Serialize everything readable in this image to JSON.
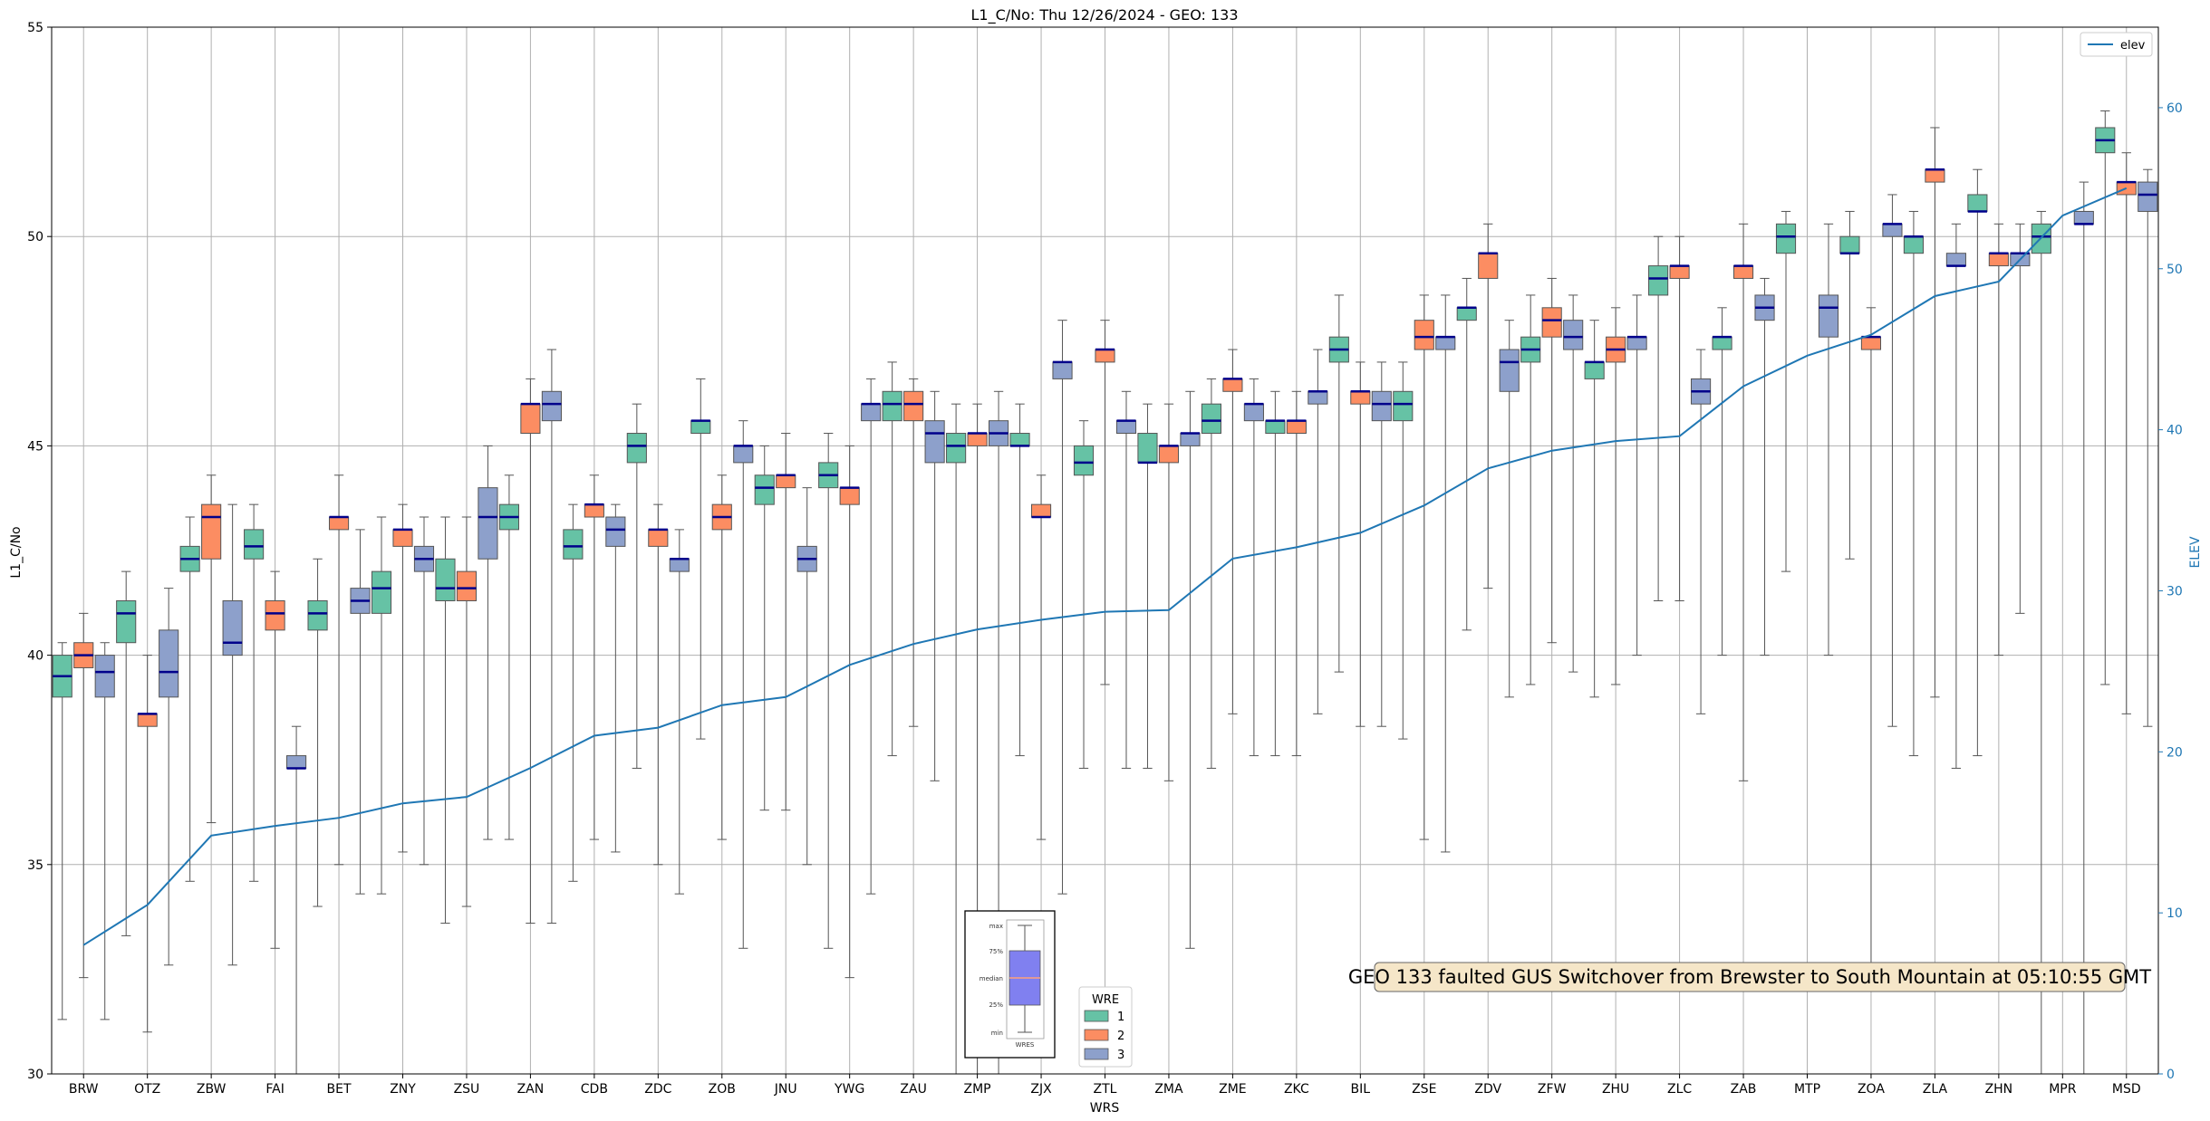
{
  "chart_data": {
    "type": "box",
    "title": "L1_C/No: Thu 12/26/2024 - GEO: 133",
    "xlabel": "WRS",
    "ylabel": "L1_C/No",
    "y2label": "ELEV",
    "ylim": [
      30,
      55
    ],
    "yticks": [
      30,
      35,
      40,
      45,
      50,
      55
    ],
    "y2lim": [
      0,
      65
    ],
    "y2ticks": [
      0,
      10,
      20,
      30,
      40,
      50,
      60
    ],
    "grid": true,
    "categories": [
      "BRW",
      "OTZ",
      "ZBW",
      "FAI",
      "BET",
      "ZNY",
      "ZSU",
      "ZAN",
      "CDB",
      "ZDC",
      "ZOB",
      "JNU",
      "YWG",
      "ZAU",
      "ZMP",
      "ZJX",
      "ZTL",
      "ZMA",
      "ZME",
      "ZKC",
      "BIL",
      "ZSE",
      "ZDV",
      "ZFW",
      "ZHU",
      "ZLC",
      "ZAB",
      "MTP",
      "ZOA",
      "ZLA",
      "ZHN",
      "MPR",
      "MSD"
    ],
    "wre_colors": {
      "1": "#66c2a5",
      "2": "#fc8d62",
      "3": "#8da0cb"
    },
    "median_color": "#00008b",
    "elev_color": "#1f77b4",
    "boxes": [
      {
        "wrs": "BRW",
        "wre": "1",
        "min": 31.3,
        "q1": 39.0,
        "median": 39.5,
        "q3": 40.0,
        "max": 40.3
      },
      {
        "wrs": "BRW",
        "wre": "2",
        "min": 32.3,
        "q1": 39.7,
        "median": 40.0,
        "q3": 40.3,
        "max": 41.0
      },
      {
        "wrs": "BRW",
        "wre": "3",
        "min": 31.3,
        "q1": 39.0,
        "median": 39.6,
        "q3": 40.0,
        "max": 40.3
      },
      {
        "wrs": "OTZ",
        "wre": "1",
        "min": 33.3,
        "q1": 40.3,
        "median": 41.0,
        "q3": 41.3,
        "max": 42.0
      },
      {
        "wrs": "OTZ",
        "wre": "2",
        "min": 31.0,
        "q1": 38.3,
        "median": 38.6,
        "q3": 38.6,
        "max": 40.0
      },
      {
        "wrs": "OTZ",
        "wre": "3",
        "min": 32.6,
        "q1": 39.0,
        "median": 39.6,
        "q3": 40.6,
        "max": 41.6
      },
      {
        "wrs": "ZBW",
        "wre": "1",
        "min": 34.6,
        "q1": 42.0,
        "median": 42.3,
        "q3": 42.6,
        "max": 43.3
      },
      {
        "wrs": "ZBW",
        "wre": "2",
        "min": 36.0,
        "q1": 42.3,
        "median": 43.3,
        "q3": 43.6,
        "max": 44.3
      },
      {
        "wrs": "ZBW",
        "wre": "3",
        "min": 32.6,
        "q1": 40.0,
        "median": 40.3,
        "q3": 41.3,
        "max": 43.6
      },
      {
        "wrs": "FAI",
        "wre": "1",
        "min": 34.6,
        "q1": 42.3,
        "median": 42.6,
        "q3": 43.0,
        "max": 43.6
      },
      {
        "wrs": "FAI",
        "wre": "2",
        "min": 33.0,
        "q1": 40.6,
        "median": 41.0,
        "q3": 41.3,
        "max": 42.0
      },
      {
        "wrs": "FAI",
        "wre": "3",
        "min": 30.0,
        "q1": 37.3,
        "median": 37.3,
        "q3": 37.6,
        "max": 38.3
      },
      {
        "wrs": "BET",
        "wre": "1",
        "min": 34.0,
        "q1": 40.6,
        "median": 41.0,
        "q3": 41.3,
        "max": 42.3
      },
      {
        "wrs": "BET",
        "wre": "2",
        "min": 35.0,
        "q1": 43.0,
        "median": 43.3,
        "q3": 43.3,
        "max": 44.3
      },
      {
        "wrs": "BET",
        "wre": "3",
        "min": 34.3,
        "q1": 41.0,
        "median": 41.3,
        "q3": 41.6,
        "max": 43.0
      },
      {
        "wrs": "ZNY",
        "wre": "1",
        "min": 34.3,
        "q1": 41.0,
        "median": 41.6,
        "q3": 42.0,
        "max": 43.3
      },
      {
        "wrs": "ZNY",
        "wre": "2",
        "min": 35.3,
        "q1": 42.6,
        "median": 43.0,
        "q3": 43.0,
        "max": 43.6
      },
      {
        "wrs": "ZNY",
        "wre": "3",
        "min": 35.0,
        "q1": 42.0,
        "median": 42.3,
        "q3": 42.6,
        "max": 43.3
      },
      {
        "wrs": "ZSU",
        "wre": "1",
        "min": 33.6,
        "q1": 41.3,
        "median": 41.6,
        "q3": 42.3,
        "max": 43.3
      },
      {
        "wrs": "ZSU",
        "wre": "2",
        "min": 34.0,
        "q1": 41.3,
        "median": 41.6,
        "q3": 42.0,
        "max": 43.3
      },
      {
        "wrs": "ZSU",
        "wre": "3",
        "min": 35.6,
        "q1": 42.3,
        "median": 43.3,
        "q3": 44.0,
        "max": 45.0
      },
      {
        "wrs": "ZAN",
        "wre": "1",
        "min": 35.6,
        "q1": 43.0,
        "median": 43.3,
        "q3": 43.6,
        "max": 44.3
      },
      {
        "wrs": "ZAN",
        "wre": "2",
        "min": 33.6,
        "q1": 45.3,
        "median": 46.0,
        "q3": 46.0,
        "max": 46.6
      },
      {
        "wrs": "ZAN",
        "wre": "3",
        "min": 33.6,
        "q1": 45.6,
        "median": 46.0,
        "q3": 46.3,
        "max": 47.3
      },
      {
        "wrs": "CDB",
        "wre": "1",
        "min": 34.6,
        "q1": 42.3,
        "median": 42.6,
        "q3": 43.0,
        "max": 43.6
      },
      {
        "wrs": "CDB",
        "wre": "2",
        "min": 35.6,
        "q1": 43.3,
        "median": 43.6,
        "q3": 43.6,
        "max": 44.3
      },
      {
        "wrs": "CDB",
        "wre": "3",
        "min": 35.3,
        "q1": 42.6,
        "median": 43.0,
        "q3": 43.3,
        "max": 43.6
      },
      {
        "wrs": "ZDC",
        "wre": "1",
        "min": 37.3,
        "q1": 44.6,
        "median": 45.0,
        "q3": 45.3,
        "max": 46.0
      },
      {
        "wrs": "ZDC",
        "wre": "2",
        "min": 35.0,
        "q1": 42.6,
        "median": 43.0,
        "q3": 43.0,
        "max": 43.6
      },
      {
        "wrs": "ZDC",
        "wre": "3",
        "min": 34.3,
        "q1": 42.0,
        "median": 42.3,
        "q3": 42.3,
        "max": 43.0
      },
      {
        "wrs": "ZOB",
        "wre": "1",
        "min": 38.0,
        "q1": 45.3,
        "median": 45.6,
        "q3": 45.6,
        "max": 46.6
      },
      {
        "wrs": "ZOB",
        "wre": "2",
        "min": 35.6,
        "q1": 43.0,
        "median": 43.3,
        "q3": 43.6,
        "max": 44.3
      },
      {
        "wrs": "ZOB",
        "wre": "3",
        "min": 33.0,
        "q1": 44.6,
        "median": 45.0,
        "q3": 45.0,
        "max": 45.6
      },
      {
        "wrs": "JNU",
        "wre": "1",
        "min": 36.3,
        "q1": 43.6,
        "median": 44.0,
        "q3": 44.3,
        "max": 45.0
      },
      {
        "wrs": "JNU",
        "wre": "2",
        "min": 36.3,
        "q1": 44.0,
        "median": 44.3,
        "q3": 44.3,
        "max": 45.3
      },
      {
        "wrs": "JNU",
        "wre": "3",
        "min": 35.0,
        "q1": 42.0,
        "median": 42.3,
        "q3": 42.6,
        "max": 44.0
      },
      {
        "wrs": "YWG",
        "wre": "1",
        "min": 33.0,
        "q1": 44.0,
        "median": 44.3,
        "q3": 44.6,
        "max": 45.3
      },
      {
        "wrs": "YWG",
        "wre": "2",
        "min": 32.3,
        "q1": 43.6,
        "median": 44.0,
        "q3": 44.0,
        "max": 45.0
      },
      {
        "wrs": "YWG",
        "wre": "3",
        "min": 34.3,
        "q1": 45.6,
        "median": 46.0,
        "q3": 46.0,
        "max": 46.6
      },
      {
        "wrs": "ZAU",
        "wre": "1",
        "min": 37.6,
        "q1": 45.6,
        "median": 46.0,
        "q3": 46.3,
        "max": 47.0
      },
      {
        "wrs": "ZAU",
        "wre": "2",
        "min": 38.3,
        "q1": 45.6,
        "median": 46.0,
        "q3": 46.3,
        "max": 46.6
      },
      {
        "wrs": "ZAU",
        "wre": "3",
        "min": 37.0,
        "q1": 44.6,
        "median": 45.3,
        "q3": 45.6,
        "max": 46.3
      },
      {
        "wrs": "ZMP",
        "wre": "1",
        "min": 30.0,
        "q1": 44.6,
        "median": 45.0,
        "q3": 45.3,
        "max": 46.0
      },
      {
        "wrs": "ZMP",
        "wre": "2",
        "min": 30.0,
        "q1": 45.0,
        "median": 45.3,
        "q3": 45.3,
        "max": 46.0
      },
      {
        "wrs": "ZMP",
        "wre": "3",
        "min": 30.0,
        "q1": 45.0,
        "median": 45.3,
        "q3": 45.6,
        "max": 46.3
      },
      {
        "wrs": "ZJX",
        "wre": "1",
        "min": 37.6,
        "q1": 45.0,
        "median": 45.0,
        "q3": 45.3,
        "max": 46.0
      },
      {
        "wrs": "ZJX",
        "wre": "2",
        "min": 35.6,
        "q1": 43.3,
        "median": 43.3,
        "q3": 43.6,
        "max": 44.3
      },
      {
        "wrs": "ZJX",
        "wre": "3",
        "min": 34.3,
        "q1": 46.6,
        "median": 47.0,
        "q3": 47.0,
        "max": 48.0
      },
      {
        "wrs": "ZTL",
        "wre": "1",
        "min": 37.3,
        "q1": 44.3,
        "median": 44.6,
        "q3": 45.0,
        "max": 45.6
      },
      {
        "wrs": "ZTL",
        "wre": "2",
        "min": 39.3,
        "q1": 47.0,
        "median": 47.3,
        "q3": 47.3,
        "max": 48.0
      },
      {
        "wrs": "ZTL",
        "wre": "3",
        "min": 37.3,
        "q1": 45.3,
        "median": 45.6,
        "q3": 45.6,
        "max": 46.3
      },
      {
        "wrs": "ZMA",
        "wre": "1",
        "min": 37.3,
        "q1": 44.6,
        "median": 44.6,
        "q3": 45.3,
        "max": 46.0
      },
      {
        "wrs": "ZMA",
        "wre": "2",
        "min": 37.0,
        "q1": 44.6,
        "median": 45.0,
        "q3": 45.0,
        "max": 46.0
      },
      {
        "wrs": "ZMA",
        "wre": "3",
        "min": 33.0,
        "q1": 45.0,
        "median": 45.3,
        "q3": 45.3,
        "max": 46.3
      },
      {
        "wrs": "ZME",
        "wre": "1",
        "min": 37.3,
        "q1": 45.3,
        "median": 45.6,
        "q3": 46.0,
        "max": 46.6
      },
      {
        "wrs": "ZME",
        "wre": "2",
        "min": 38.6,
        "q1": 46.3,
        "median": 46.6,
        "q3": 46.6,
        "max": 47.3
      },
      {
        "wrs": "ZME",
        "wre": "3",
        "min": 37.6,
        "q1": 45.6,
        "median": 46.0,
        "q3": 46.0,
        "max": 46.6
      },
      {
        "wrs": "ZKC",
        "wre": "1",
        "min": 37.6,
        "q1": 45.3,
        "median": 45.6,
        "q3": 45.6,
        "max": 46.3
      },
      {
        "wrs": "ZKC",
        "wre": "2",
        "min": 37.6,
        "q1": 45.3,
        "median": 45.6,
        "q3": 45.6,
        "max": 46.3
      },
      {
        "wrs": "ZKC",
        "wre": "3",
        "min": 38.6,
        "q1": 46.0,
        "median": 46.3,
        "q3": 46.3,
        "max": 47.3
      },
      {
        "wrs": "BIL",
        "wre": "1",
        "min": 39.6,
        "q1": 47.0,
        "median": 47.3,
        "q3": 47.6,
        "max": 48.6
      },
      {
        "wrs": "BIL",
        "wre": "2",
        "min": 38.3,
        "q1": 46.0,
        "median": 46.3,
        "q3": 46.3,
        "max": 47.0
      },
      {
        "wrs": "BIL",
        "wre": "3",
        "min": 38.3,
        "q1": 45.6,
        "median": 46.0,
        "q3": 46.3,
        "max": 47.0
      },
      {
        "wrs": "ZSE",
        "wre": "1",
        "min": 38.0,
        "q1": 45.6,
        "median": 46.0,
        "q3": 46.3,
        "max": 47.0
      },
      {
        "wrs": "ZSE",
        "wre": "2",
        "min": 35.6,
        "q1": 47.3,
        "median": 47.6,
        "q3": 48.0,
        "max": 48.6
      },
      {
        "wrs": "ZSE",
        "wre": "3",
        "min": 35.3,
        "q1": 47.3,
        "median": 47.6,
        "q3": 47.6,
        "max": 48.6
      },
      {
        "wrs": "ZDV",
        "wre": "1",
        "min": 40.6,
        "q1": 48.0,
        "median": 48.3,
        "q3": 48.3,
        "max": 49.0
      },
      {
        "wrs": "ZDV",
        "wre": "2",
        "min": 41.6,
        "q1": 49.0,
        "median": 49.6,
        "q3": 49.6,
        "max": 50.3
      },
      {
        "wrs": "ZDV",
        "wre": "3",
        "min": 39.0,
        "q1": 46.3,
        "median": 47.0,
        "q3": 47.3,
        "max": 48.0
      },
      {
        "wrs": "ZFW",
        "wre": "1",
        "min": 39.3,
        "q1": 47.0,
        "median": 47.3,
        "q3": 47.6,
        "max": 48.6
      },
      {
        "wrs": "ZFW",
        "wre": "2",
        "min": 40.3,
        "q1": 47.6,
        "median": 48.0,
        "q3": 48.3,
        "max": 49.0
      },
      {
        "wrs": "ZFW",
        "wre": "3",
        "min": 39.6,
        "q1": 47.3,
        "median": 47.6,
        "q3": 48.0,
        "max": 48.6
      },
      {
        "wrs": "ZHU",
        "wre": "1",
        "min": 39.0,
        "q1": 46.6,
        "median": 47.0,
        "q3": 47.0,
        "max": 48.0
      },
      {
        "wrs": "ZHU",
        "wre": "2",
        "min": 39.3,
        "q1": 47.0,
        "median": 47.3,
        "q3": 47.6,
        "max": 48.3
      },
      {
        "wrs": "ZHU",
        "wre": "3",
        "min": 40.0,
        "q1": 47.3,
        "median": 47.6,
        "q3": 47.6,
        "max": 48.6
      },
      {
        "wrs": "ZLC",
        "wre": "1",
        "min": 41.3,
        "q1": 48.6,
        "median": 49.0,
        "q3": 49.3,
        "max": 50.0
      },
      {
        "wrs": "ZLC",
        "wre": "2",
        "min": 41.3,
        "q1": 49.0,
        "median": 49.3,
        "q3": 49.3,
        "max": 50.0
      },
      {
        "wrs": "ZLC",
        "wre": "3",
        "min": 38.6,
        "q1": 46.0,
        "median": 46.3,
        "q3": 46.6,
        "max": 47.3
      },
      {
        "wrs": "ZAB",
        "wre": "1",
        "min": 40.0,
        "q1": 47.3,
        "median": 47.6,
        "q3": 47.6,
        "max": 48.3
      },
      {
        "wrs": "ZAB",
        "wre": "2",
        "min": 37.0,
        "q1": 49.0,
        "median": 49.3,
        "q3": 49.3,
        "max": 50.3
      },
      {
        "wrs": "ZAB",
        "wre": "3",
        "min": 40.0,
        "q1": 48.0,
        "median": 48.3,
        "q3": 48.6,
        "max": 49.0
      },
      {
        "wrs": "MTP",
        "wre": "1",
        "min": 42.0,
        "q1": 49.6,
        "median": 50.0,
        "q3": 50.3,
        "max": 50.6
      },
      {
        "wrs": "MTP",
        "wre": "3",
        "min": 40.0,
        "q1": 47.6,
        "median": 48.3,
        "q3": 48.6,
        "max": 50.3
      },
      {
        "wrs": "ZOA",
        "wre": "1",
        "min": 42.3,
        "q1": 49.6,
        "median": 49.6,
        "q3": 50.0,
        "max": 50.6
      },
      {
        "wrs": "ZOA",
        "wre": "2",
        "min": 32.0,
        "q1": 47.3,
        "median": 47.6,
        "q3": 47.6,
        "max": 48.3
      },
      {
        "wrs": "ZOA",
        "wre": "3",
        "min": 38.3,
        "q1": 50.0,
        "median": 50.3,
        "q3": 50.3,
        "max": 51.0
      },
      {
        "wrs": "ZLA",
        "wre": "1",
        "min": 37.6,
        "q1": 49.6,
        "median": 50.0,
        "q3": 50.0,
        "max": 50.6
      },
      {
        "wrs": "ZLA",
        "wre": "2",
        "min": 39.0,
        "q1": 51.3,
        "median": 51.6,
        "q3": 51.6,
        "max": 52.6
      },
      {
        "wrs": "ZLA",
        "wre": "3",
        "min": 37.3,
        "q1": 49.3,
        "median": 49.3,
        "q3": 49.6,
        "max": 50.3
      },
      {
        "wrs": "ZHN",
        "wre": "1",
        "min": 37.6,
        "q1": 50.6,
        "median": 50.6,
        "q3": 51.0,
        "max": 51.6
      },
      {
        "wrs": "ZHN",
        "wre": "2",
        "min": 40.0,
        "q1": 49.3,
        "median": 49.6,
        "q3": 49.6,
        "max": 50.3
      },
      {
        "wrs": "ZHN",
        "wre": "3",
        "min": 41.0,
        "q1": 49.3,
        "median": 49.6,
        "q3": 49.6,
        "max": 50.3
      },
      {
        "wrs": "MPR",
        "wre": "1",
        "min": 30.0,
        "q1": 49.6,
        "median": 50.0,
        "q3": 50.3,
        "max": 50.6
      },
      {
        "wrs": "MPR",
        "wre": "3",
        "min": 30.0,
        "q1": 50.3,
        "median": 50.3,
        "q3": 50.6,
        "max": 51.3
      },
      {
        "wrs": "MSD",
        "wre": "1",
        "min": 39.3,
        "q1": 52.0,
        "median": 52.3,
        "q3": 52.6,
        "max": 53.0
      },
      {
        "wrs": "MSD",
        "wre": "2",
        "min": 38.6,
        "q1": 51.0,
        "median": 51.3,
        "q3": 51.3,
        "max": 52.0
      },
      {
        "wrs": "MSD",
        "wre": "3",
        "min": 38.3,
        "q1": 50.6,
        "median": 51.0,
        "q3": 51.3,
        "max": 51.6
      }
    ],
    "elev_series": {
      "name": "elev",
      "values": [
        8.0,
        10.5,
        14.8,
        15.4,
        15.9,
        16.8,
        17.2,
        19.0,
        21.0,
        21.5,
        22.9,
        23.4,
        25.4,
        26.7,
        27.6,
        28.2,
        28.7,
        28.8,
        32.0,
        32.7,
        33.6,
        35.3,
        37.6,
        38.7,
        39.3,
        39.6,
        42.7,
        44.6,
        45.9,
        48.3,
        49.2,
        53.3,
        55.0
      ]
    },
    "legend_elev": {
      "label": "elev",
      "position": "top-right"
    },
    "legend_wre": {
      "title": "WRE",
      "entries": [
        "1",
        "2",
        "3"
      ],
      "position": "bottom-center"
    },
    "inset_legend": {
      "labels": [
        "max",
        "75%",
        "median",
        "25%",
        "min"
      ],
      "xlabel": "WRES",
      "box_color": "#8080f0",
      "median_color": "#ffa07a"
    },
    "annotation": "GEO 133 faulted GUS Switchover from Brewster to South Mountain at 05:10:55 GMT",
    "annotation_bg": "#f5e6c8"
  }
}
